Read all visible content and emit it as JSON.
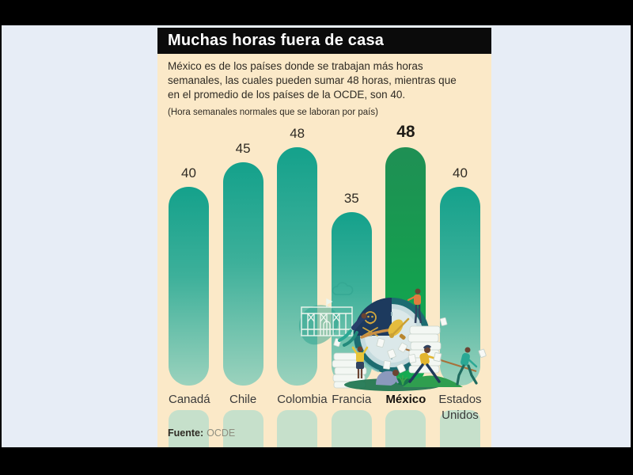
{
  "window": {
    "frame_color": "#000000",
    "workspace_color": "#e7edf6"
  },
  "infographic": {
    "panel_color": "#fbe9c8",
    "banner_color": "#0b0b0b",
    "title": "Muchas horas fuera de casa",
    "description_lines": [
      "México es de los países donde se trabajan más horas",
      "semanales, las cuales pueden sumar 48 horas, mientras que",
      "en el promedio de los países de la OCDE, son 40."
    ],
    "subtitle": "(Hora semanales normales que se laboran por país)",
    "source_label": "Fuente:",
    "source_value": "OCDE"
  },
  "chart_data": {
    "type": "bar",
    "title": "(Hora semanales normales que se laboran por país)",
    "categories": [
      "Canadá",
      "Chile",
      "Colombia",
      "Francia",
      "México",
      "Estados Unidos"
    ],
    "values": [
      40,
      45,
      48,
      35,
      48,
      40
    ],
    "highlight_category": "México",
    "xlabel": "",
    "ylabel": "",
    "ylim": [
      0,
      48
    ],
    "grid": false,
    "legend": false,
    "bar_color": "#14a18b",
    "bar_color_bottom": "#9bd2bd",
    "highlight_bar_color": "#14a04f",
    "fade_bar_color": "#c6e0cb",
    "value_label_color": "#2f2b24"
  }
}
